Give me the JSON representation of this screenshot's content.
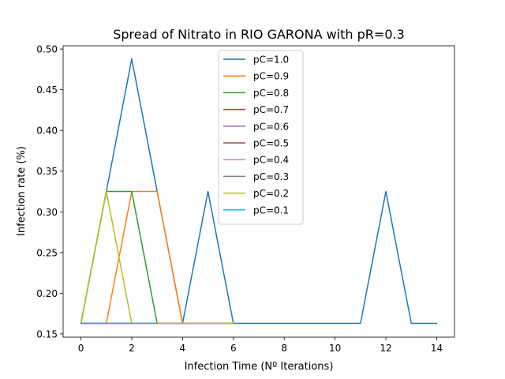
{
  "chart_data": {
    "type": "line",
    "title": "Spread of Nitrato in RIO GARONA with pR=0.3",
    "xlabel": "Infection Time (Nº Iterations)",
    "ylabel": "Infection rate (%)",
    "xlim": [
      -0.7,
      14.7
    ],
    "ylim": [
      0.146,
      0.504
    ],
    "xticks": [
      0,
      2,
      4,
      6,
      8,
      10,
      12,
      14
    ],
    "yticks": [
      0.15,
      0.2,
      0.25,
      0.3,
      0.35,
      0.4,
      0.45,
      0.5
    ],
    "legend_position": "top-center",
    "series": [
      {
        "name": "pC=1.0",
        "color": "#1f77b4",
        "x": [
          0,
          1,
          2,
          3,
          4,
          5,
          6,
          7,
          8,
          9,
          10,
          11,
          12,
          13,
          14
        ],
        "y": [
          0.163,
          0.325,
          0.488,
          0.325,
          0.163,
          0.325,
          0.163,
          0.163,
          0.163,
          0.163,
          0.163,
          0.163,
          0.325,
          0.163,
          0.163
        ]
      },
      {
        "name": "pC=0.9",
        "color": "#ff7f0e",
        "x": [
          0,
          1,
          2,
          3,
          4,
          5,
          6
        ],
        "y": [
          0.163,
          0.163,
          0.325,
          0.325,
          0.163,
          0.163,
          0.163
        ]
      },
      {
        "name": "pC=0.8",
        "color": "#2ca02c",
        "x": [
          0,
          1,
          2,
          3,
          4,
          5,
          6
        ],
        "y": [
          0.163,
          0.325,
          0.325,
          0.163,
          0.163,
          0.163,
          0.163
        ]
      },
      {
        "name": "pC=0.7",
        "color": "#d62728",
        "x": [
          0,
          1,
          2,
          3,
          4,
          5,
          6
        ],
        "y": [
          0.163,
          0.163,
          0.163,
          0.163,
          0.163,
          0.163,
          0.163
        ]
      },
      {
        "name": "pC=0.6",
        "color": "#9467bd",
        "x": [
          0,
          1,
          2,
          3,
          4,
          5,
          6
        ],
        "y": [
          0.163,
          0.163,
          0.163,
          0.163,
          0.163,
          0.163,
          0.163
        ]
      },
      {
        "name": "pC=0.5",
        "color": "#8c564b",
        "x": [
          0,
          1,
          2,
          3,
          4,
          5,
          6
        ],
        "y": [
          0.163,
          0.163,
          0.163,
          0.163,
          0.163,
          0.163,
          0.163
        ]
      },
      {
        "name": "pC=0.4",
        "color": "#e377c2",
        "x": [
          0,
          1,
          2,
          3,
          4,
          5,
          6
        ],
        "y": [
          0.163,
          0.163,
          0.163,
          0.163,
          0.163,
          0.163,
          0.163
        ]
      },
      {
        "name": "pC=0.3",
        "color": "#7f7f7f",
        "x": [
          0,
          1,
          2,
          3,
          4,
          5,
          6
        ],
        "y": [
          0.163,
          0.163,
          0.163,
          0.163,
          0.163,
          0.163,
          0.163
        ]
      },
      {
        "name": "pC=0.2",
        "color": "#bcbd22",
        "x": [
          0,
          1,
          2,
          3,
          4,
          5,
          6
        ],
        "y": [
          0.163,
          0.325,
          0.163,
          0.163,
          0.163,
          0.163,
          0.163
        ]
      },
      {
        "name": "pC=0.1",
        "color": "#17becf",
        "x": [
          0,
          1,
          2,
          3
        ],
        "y": [
          0.163,
          0.163,
          0.163,
          0.163
        ]
      }
    ]
  }
}
